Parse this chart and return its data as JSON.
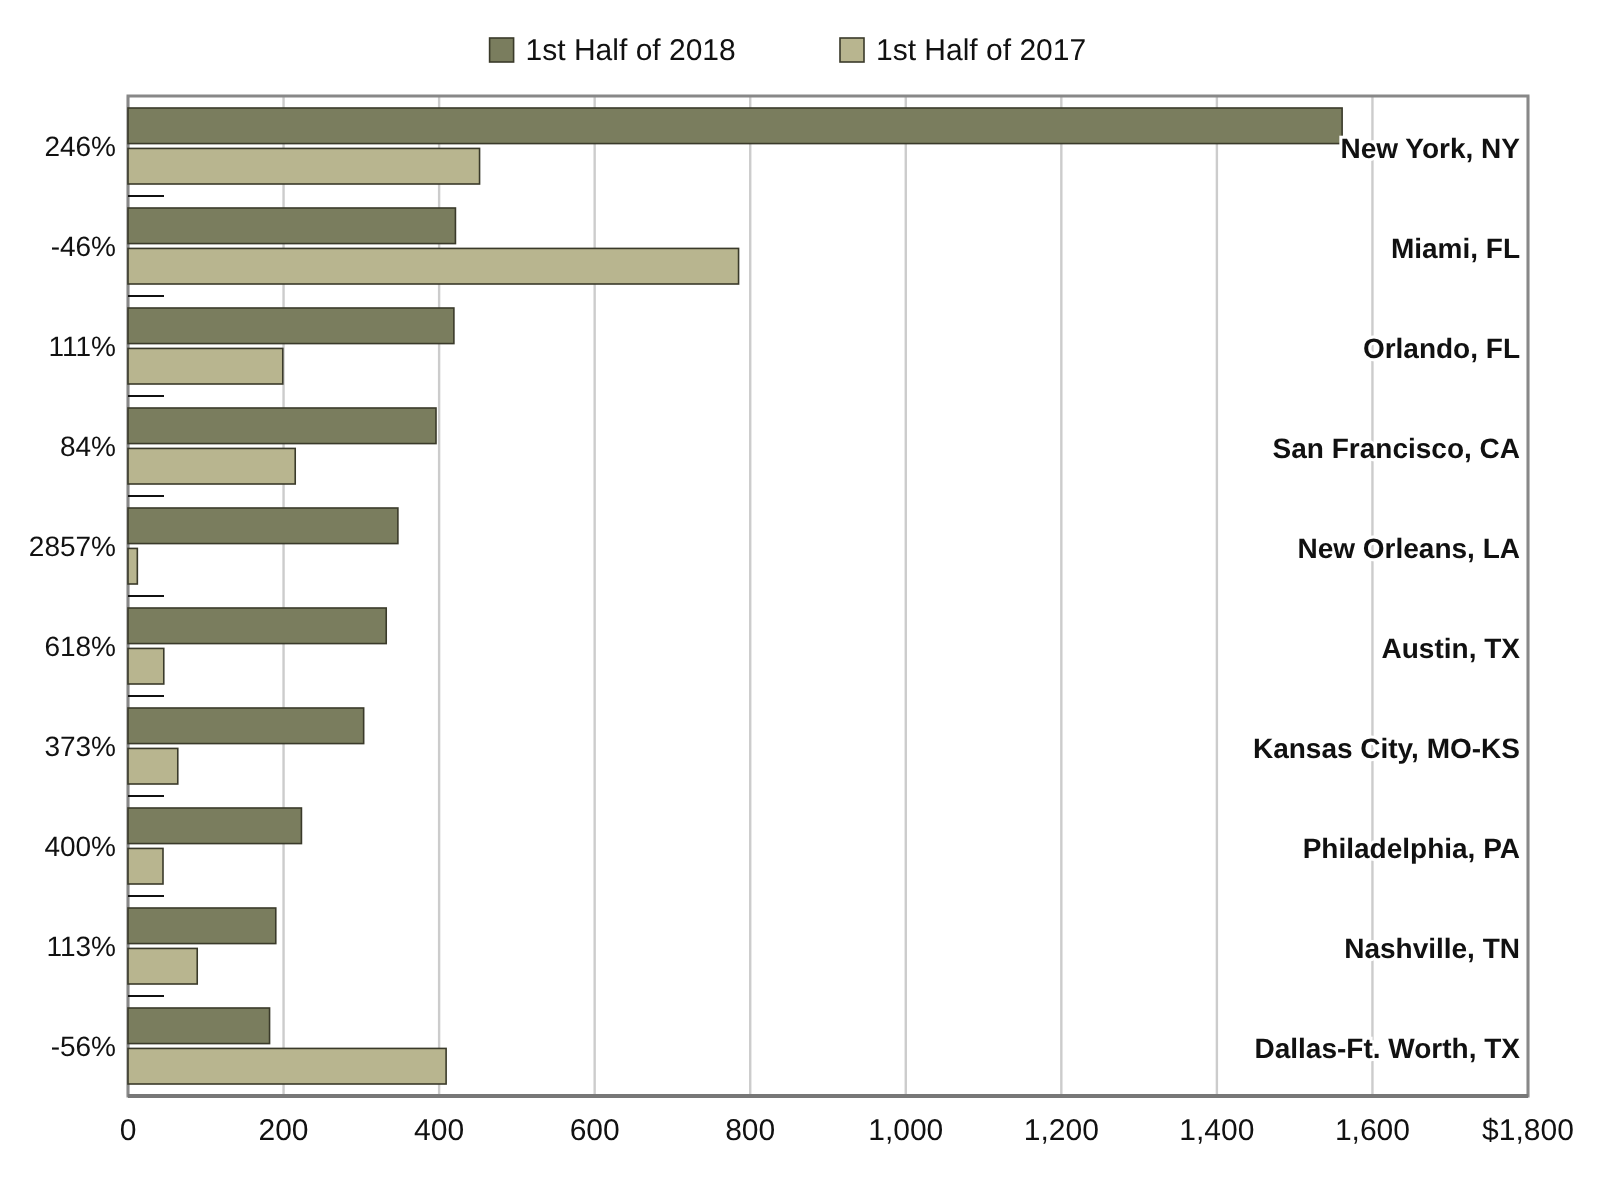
{
  "chart_data": {
    "type": "bar",
    "orientation": "horizontal",
    "categories": [
      "New York, NY",
      "Miami, FL",
      "Orlando, FL",
      "San Francisco, CA",
      "New Orleans, LA",
      "Austin, TX",
      "Kansas City, MO-KS",
      "Philadelphia, PA",
      "Nashville, TN",
      "Dallas-Ft. Worth, TX"
    ],
    "series": [
      {
        "name": "1st Half of 2018",
        "color": "#7a7d5e",
        "values": [
          1561,
          421,
          419,
          396,
          347,
          332,
          303,
          223,
          190,
          182
        ]
      },
      {
        "name": "1st Half of 2017",
        "color": "#b8b58f",
        "values": [
          452,
          785,
          199,
          215,
          12,
          46,
          64,
          45,
          89,
          409
        ]
      }
    ],
    "xlim": [
      0,
      1800
    ],
    "xticks": [
      0,
      200,
      400,
      600,
      800,
      {
        "value": 1000,
        "label": "1,000"
      },
      {
        "value": 1200,
        "label": "1,200"
      },
      {
        "value": 1400,
        "label": "1,400"
      },
      {
        "value": 1600,
        "label": "1,600"
      },
      {
        "value": 1800,
        "label": "$1,800"
      }
    ],
    "annotations": [
      "246%",
      "-46%",
      "111%",
      "84%",
      "2857%",
      "618%",
      "373%",
      "400%",
      "113%",
      "-56%"
    ],
    "grid": "x",
    "legend": "top"
  }
}
